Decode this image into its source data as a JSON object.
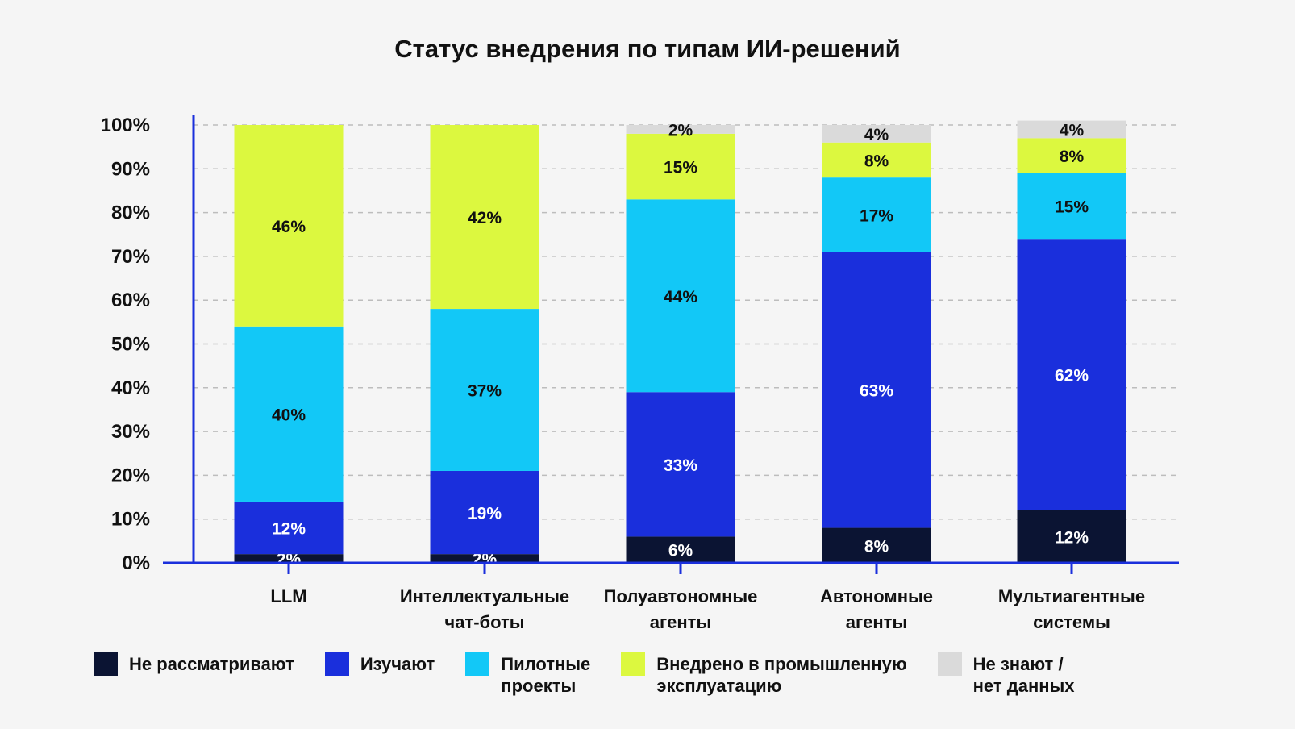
{
  "chart_data": {
    "type": "bar",
    "stacked": true,
    "title": "Статус внедрения по типам ИИ-решений",
    "categories": [
      [
        "LLM"
      ],
      [
        "Интеллектуальные",
        "чат-боты"
      ],
      [
        "Полуавтономные",
        "агенты"
      ],
      [
        "Автономные",
        "агенты"
      ],
      [
        "Мультиагентные",
        "системы"
      ]
    ],
    "series": [
      {
        "name": [
          "Не рассматривают"
        ],
        "color": "#0b1433",
        "label_color": "#ffffff",
        "values": [
          2,
          2,
          6,
          8,
          12
        ]
      },
      {
        "name": [
          "Изучают"
        ],
        "color": "#1a2fdc",
        "label_color": "#ffffff",
        "values": [
          12,
          19,
          33,
          63,
          62
        ]
      },
      {
        "name": [
          "Пилотные",
          "проекты"
        ],
        "color": "#12c8f7",
        "label_color": "#111111",
        "values": [
          40,
          37,
          44,
          17,
          15
        ]
      },
      {
        "name": [
          "Внедрено в промышленную",
          "эксплуатацию"
        ],
        "color": "#dcf83f",
        "label_color": "#111111",
        "values": [
          46,
          42,
          15,
          8,
          8
        ]
      },
      {
        "name": [
          "Не знают /",
          "нет данных"
        ],
        "color": "#dadada",
        "label_color": "#111111",
        "values": [
          0,
          0,
          2,
          4,
          4
        ]
      }
    ],
    "value_suffix": "%",
    "yticks": [
      "0%",
      "10%",
      "20%",
      "30%",
      "40%",
      "50%",
      "60%",
      "70%",
      "80%",
      "90%",
      "100%"
    ],
    "ylim": [
      0,
      100
    ],
    "grid": true,
    "legend_position": "bottom"
  },
  "colors": {
    "axis": "#1a2fdc",
    "grid": "#bdbdbd",
    "text": "#111111",
    "background": "#f5f5f5"
  }
}
